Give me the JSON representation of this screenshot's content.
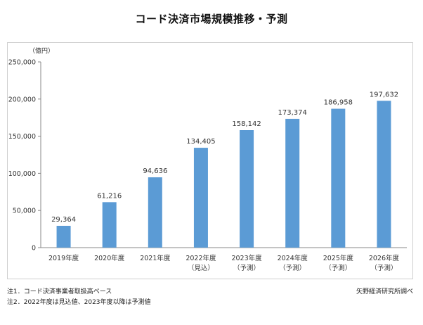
{
  "title": "コード決済市場規模推移・予測",
  "notes": [
    "注1．コード決済事業者取扱高ベース",
    "注2．2022年度は見込値、2023年度以降は予測値"
  ],
  "source": "矢野経済研究所調べ",
  "chart_data": {
    "type": "bar",
    "unit_label": "（億円）",
    "categories": [
      {
        "line1": "2019年度",
        "line2": ""
      },
      {
        "line1": "2020年度",
        "line2": ""
      },
      {
        "line1": "2021年度",
        "line2": ""
      },
      {
        "line1": "2022年度",
        "line2": "（見込）"
      },
      {
        "line1": "2023年度",
        "line2": "（予測）"
      },
      {
        "line1": "2024年度",
        "line2": "（予測）"
      },
      {
        "line1": "2025年度",
        "line2": "（予測）"
      },
      {
        "line1": "2026年度",
        "line2": "（予測）"
      }
    ],
    "values": [
      29364,
      61216,
      94636,
      134405,
      158142,
      173374,
      186958,
      197632
    ],
    "value_labels": [
      "29,364",
      "61,216",
      "94,636",
      "134,405",
      "158,142",
      "173,374",
      "186,958",
      "197,632"
    ],
    "ylim": [
      0,
      250000
    ],
    "yticks": [
      0,
      50000,
      100000,
      150000,
      200000,
      250000
    ],
    "ytick_labels": [
      "0",
      "50,000",
      "100,000",
      "150,000",
      "200,000",
      "250,000"
    ],
    "bar_color": "#5b9bd5",
    "grid": false,
    "legend": "none"
  }
}
